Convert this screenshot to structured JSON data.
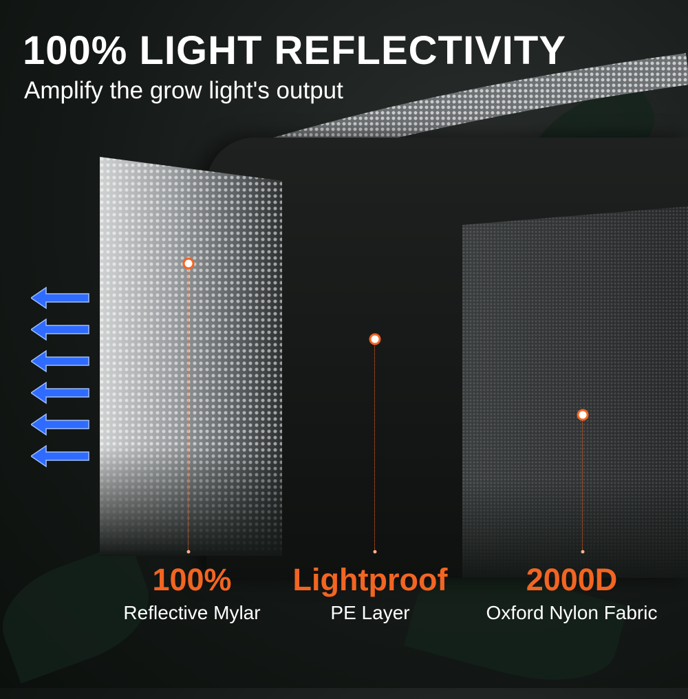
{
  "header": {
    "title": "100% LIGHT REFLECTIVITY",
    "subtitle": "Amplify the grow light's output"
  },
  "accent_color": "#f26522",
  "arrow_color": "#2f6bff",
  "arrows": {
    "count": 6,
    "icon": "arrow-left-icon"
  },
  "layers": [
    {
      "headline": "100%",
      "label": "Reflective Mylar"
    },
    {
      "headline": "Lightproof",
      "label": "PE Layer"
    },
    {
      "headline": "2000D",
      "label": "Oxford Nylon Fabric"
    }
  ]
}
